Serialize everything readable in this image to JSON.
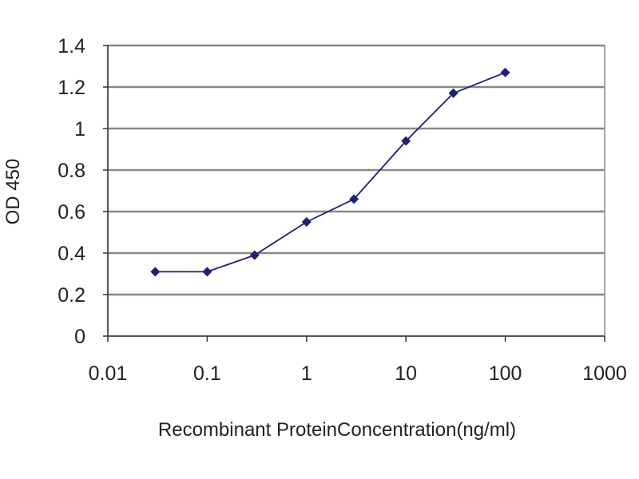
{
  "chart_data": {
    "type": "line",
    "title": "",
    "xlabel": "Recombinant ProteinConcentration(ng/ml)",
    "ylabel": "OD 450",
    "x_scale": "log",
    "xlim": [
      0.01,
      1000
    ],
    "ylim": [
      0,
      1.4
    ],
    "x_ticks": [
      "0.01",
      "0.1",
      "1",
      "10",
      "100",
      "1000"
    ],
    "y_ticks": [
      "0",
      "0.2",
      "0.4",
      "0.6",
      "0.8",
      "1",
      "1.2",
      "1.4"
    ],
    "grid": "horizontal",
    "legend": "none",
    "series": [
      {
        "x": [
          0.03,
          0.1,
          0.3,
          1,
          3,
          10,
          30,
          100
        ],
        "y": [
          0.31,
          0.31,
          0.39,
          0.55,
          0.66,
          0.94,
          1.17,
          1.27
        ]
      }
    ],
    "colors": {
      "series": "#1f1f7a",
      "plot_background": "#ffffff",
      "gridline": "#888888",
      "plot_border": "#888888",
      "axis": "#333333"
    }
  }
}
